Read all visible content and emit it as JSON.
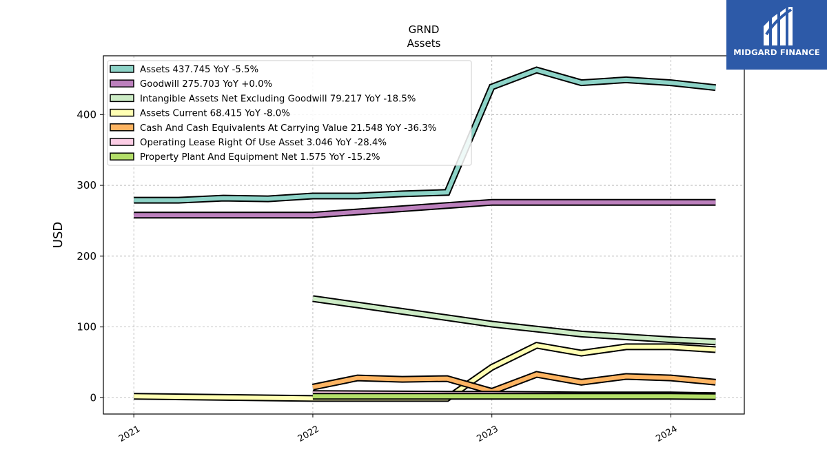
{
  "chart_data": {
    "type": "line",
    "title": "GRND",
    "subtitle": "Assets",
    "ylabel": "USD",
    "xlabel": "",
    "ylim": [
      -23,
      483
    ],
    "xlim": [
      2020.83,
      2024.41
    ],
    "yticks": [
      0,
      100,
      200,
      300,
      400
    ],
    "xticks": [
      2021,
      2022,
      2023,
      2024
    ],
    "xtick_labels": [
      "2021",
      "2022",
      "2023",
      "2024"
    ],
    "grid": true,
    "legend_position": "top-left",
    "series": [
      {
        "name": "Assets",
        "legend_label": "Assets  437.745 YoY -5.5%",
        "color": "#8dd3c7",
        "points": [
          [
            2021.0,
            279
          ],
          [
            2021.25,
            279
          ],
          [
            2021.5,
            282
          ],
          [
            2021.75,
            281
          ],
          [
            2022.0,
            285
          ],
          [
            2022.25,
            285
          ],
          [
            2022.5,
            288
          ],
          [
            2022.75,
            290
          ],
          [
            2023.0,
            439
          ],
          [
            2023.25,
            463
          ],
          [
            2023.5,
            445
          ],
          [
            2023.75,
            449
          ],
          [
            2024.0,
            445
          ],
          [
            2024.25,
            438
          ]
        ]
      },
      {
        "name": "Goodwill",
        "legend_label": "Goodwill  275.703 YoY +0.0%",
        "color": "#bc80bd",
        "points": [
          [
            2021.0,
            258
          ],
          [
            2022.0,
            258
          ],
          [
            2023.0,
            276
          ],
          [
            2024.25,
            276
          ]
        ]
      },
      {
        "name": "Intangible Assets Net Excluding Goodwill",
        "legend_label": "Intangible Assets Net Excluding Goodwill  79.217 YoY -18.5%",
        "color": "#ccebc5",
        "points": [
          [
            2022.0,
            140
          ],
          [
            2022.25,
            131
          ],
          [
            2022.5,
            122
          ],
          [
            2022.75,
            113
          ],
          [
            2023.0,
            104
          ],
          [
            2023.25,
            97
          ],
          [
            2023.5,
            90
          ],
          [
            2023.75,
            86
          ],
          [
            2024.0,
            82
          ],
          [
            2024.25,
            79
          ]
        ]
      },
      {
        "name": "Assets Current",
        "legend_label": "Assets Current  68.415 YoY -8.0%",
        "color": "#ffffb3",
        "points": [
          [
            2021.0,
            2
          ],
          [
            2022.0,
            -1
          ],
          [
            2022.75,
            -1
          ],
          [
            2023.0,
            43
          ],
          [
            2023.25,
            74
          ],
          [
            2023.5,
            63
          ],
          [
            2023.75,
            72
          ],
          [
            2024.0,
            72
          ],
          [
            2024.25,
            68
          ]
        ]
      },
      {
        "name": "Cash And Cash Equivalents At Carrying Value",
        "legend_label": "Cash And Cash Equivalents At Carrying Value  21.548 YoY -36.3%",
        "color": "#fdb462",
        "points": [
          [
            2022.0,
            15
          ],
          [
            2022.25,
            28
          ],
          [
            2022.5,
            26
          ],
          [
            2022.75,
            27
          ],
          [
            2023.0,
            9
          ],
          [
            2023.25,
            33
          ],
          [
            2023.5,
            22
          ],
          [
            2023.75,
            30
          ],
          [
            2024.0,
            28
          ],
          [
            2024.25,
            22
          ]
        ]
      },
      {
        "name": "Operating Lease Right Of Use Asset",
        "legend_label": "Operating Lease Right Of Use Asset  3.046 YoY -28.4%",
        "color": "#fccde5",
        "points": [
          [
            2022.0,
            6
          ],
          [
            2022.75,
            5
          ],
          [
            2023.0,
            5
          ],
          [
            2023.5,
            4
          ],
          [
            2024.0,
            4
          ],
          [
            2024.25,
            3
          ]
        ]
      },
      {
        "name": "Property Plant And Equipment Net",
        "legend_label": "Property Plant And Equipment Net  1.575 YoY -15.2%",
        "color": "#b3de69",
        "points": [
          [
            2022.0,
            2
          ],
          [
            2023.0,
            2
          ],
          [
            2024.0,
            2
          ],
          [
            2024.25,
            1.5
          ]
        ]
      }
    ]
  },
  "branding": {
    "logo_text": "MIDGARD FINANCE",
    "logo_color": "#2d5aa8"
  }
}
